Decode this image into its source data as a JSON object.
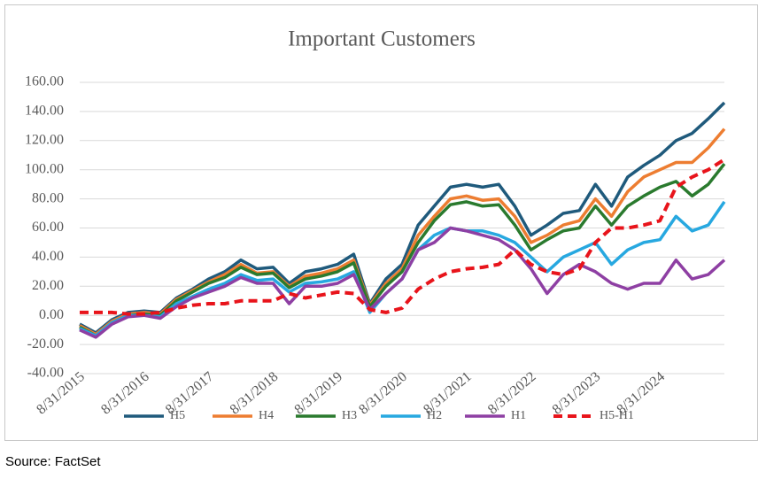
{
  "chart_data": {
    "type": "line",
    "title": "Important Customers",
    "source": "Source: FactSet",
    "categories": [
      "8/31/2015",
      null,
      null,
      null,
      "8/31/2016",
      null,
      null,
      null,
      "8/31/2017",
      null,
      null,
      null,
      "8/31/2018",
      null,
      null,
      null,
      "8/31/2019",
      null,
      null,
      null,
      "8/31/2020",
      null,
      null,
      null,
      "8/31/2021",
      null,
      null,
      null,
      "8/31/2022",
      null,
      null,
      null,
      "8/31/2023",
      null,
      null,
      null,
      "8/31/2024",
      null,
      null,
      null,
      null
    ],
    "series": [
      {
        "name": "H5",
        "color": "#1f5a7c",
        "dashed": false,
        "values": [
          -6,
          -12,
          -3,
          2,
          3,
          2,
          12,
          18,
          25,
          30,
          38,
          32,
          33,
          22,
          30,
          32,
          35,
          42,
          8,
          25,
          35,
          62,
          75,
          88,
          90,
          88,
          90,
          75,
          55,
          62,
          70,
          72,
          90,
          75,
          95,
          103,
          110,
          120,
          125,
          135,
          146
        ]
      },
      {
        "name": "H4",
        "color": "#ed7d31",
        "dashed": false,
        "values": [
          -7,
          -13,
          -4,
          1,
          2,
          1,
          11,
          17,
          23,
          28,
          35,
          29,
          30,
          20,
          27,
          29,
          32,
          38,
          7,
          22,
          32,
          55,
          68,
          80,
          82,
          79,
          80,
          68,
          50,
          55,
          62,
          65,
          80,
          68,
          85,
          95,
          100,
          105,
          105,
          115,
          128
        ]
      },
      {
        "name": "H3",
        "color": "#2a7a2e",
        "dashed": false,
        "values": [
          -8,
          -14,
          -5,
          0,
          1,
          0,
          10,
          16,
          22,
          26,
          33,
          28,
          29,
          19,
          25,
          27,
          30,
          36,
          6,
          20,
          30,
          50,
          65,
          76,
          78,
          75,
          76,
          62,
          45,
          52,
          58,
          60,
          75,
          62,
          75,
          82,
          88,
          92,
          82,
          90,
          104
        ]
      },
      {
        "name": "H2",
        "color": "#27a8e0",
        "dashed": false,
        "values": [
          -9,
          -14,
          -5,
          0,
          0,
          -1,
          8,
          13,
          18,
          22,
          28,
          24,
          25,
          16,
          22,
          23,
          25,
          30,
          2,
          15,
          25,
          45,
          55,
          60,
          58,
          58,
          55,
          50,
          40,
          30,
          40,
          45,
          50,
          35,
          45,
          50,
          52,
          68,
          58,
          62,
          78
        ]
      },
      {
        "name": "H1",
        "color": "#8e3fa3",
        "dashed": false,
        "values": [
          -10,
          -15,
          -6,
          -1,
          0,
          -2,
          6,
          12,
          16,
          20,
          26,
          22,
          22,
          8,
          20,
          20,
          22,
          28,
          4,
          15,
          25,
          45,
          50,
          60,
          58,
          55,
          52,
          45,
          32,
          15,
          28,
          35,
          30,
          22,
          18,
          22,
          22,
          38,
          25,
          28,
          38
        ]
      },
      {
        "name": "H5-H1",
        "color": "#e8141b",
        "dashed": true,
        "values": [
          2,
          2,
          2,
          1,
          1,
          2,
          5,
          7,
          8,
          8,
          10,
          10,
          10,
          15,
          12,
          14,
          16,
          15,
          4,
          2,
          5,
          18,
          25,
          30,
          32,
          33,
          35,
          45,
          35,
          30,
          28,
          32,
          50,
          60,
          60,
          62,
          65,
          88,
          95,
          100,
          107
        ]
      }
    ],
    "ylim": [
      -40,
      160
    ],
    "yticks": [
      {
        "value": -40,
        "label": "-40.00"
      },
      {
        "value": -20,
        "label": "-20.00"
      },
      {
        "value": 0,
        "label": "0.00"
      },
      {
        "value": 20,
        "label": "20.00"
      },
      {
        "value": 40,
        "label": "40.00"
      },
      {
        "value": 60,
        "label": "60.00"
      },
      {
        "value": 80,
        "label": "80.00"
      },
      {
        "value": 100,
        "label": "100.00"
      },
      {
        "value": 120,
        "label": "120.00"
      },
      {
        "value": 140,
        "label": "140.00"
      },
      {
        "value": 160,
        "label": "160.00"
      }
    ],
    "grid": true,
    "legend": "bottom"
  }
}
